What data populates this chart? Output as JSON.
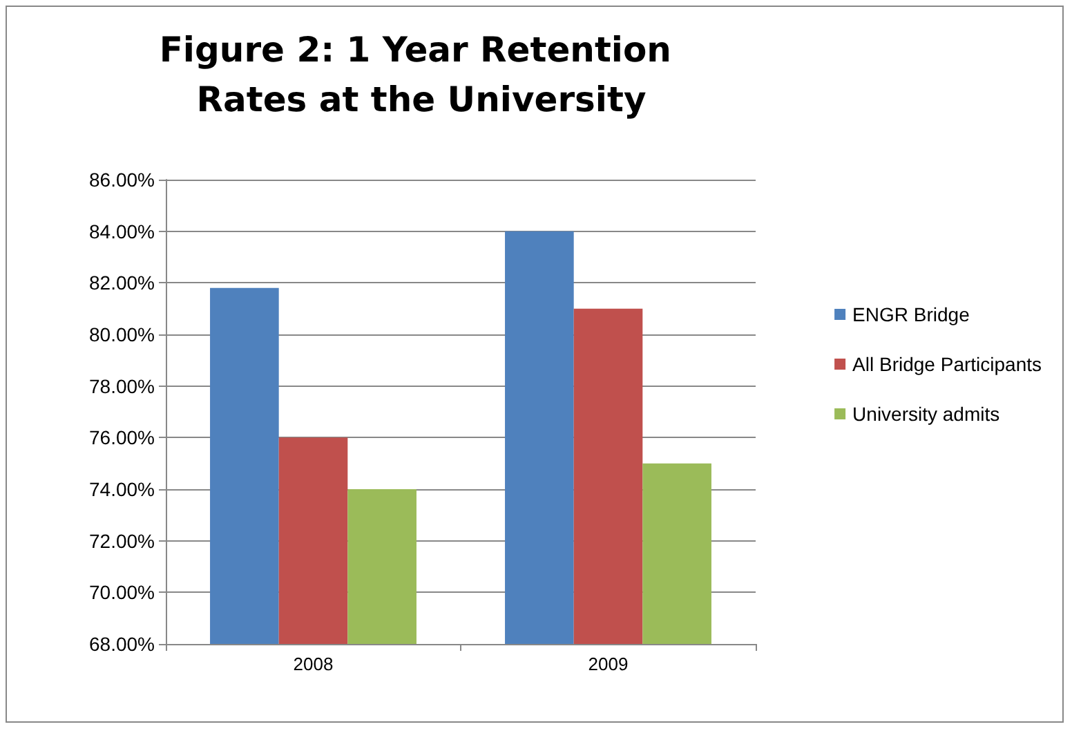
{
  "chart_data": {
    "type": "bar",
    "title": "Figure 2: 1 Year Retention Rates at the University",
    "categories": [
      "2008",
      "2009"
    ],
    "series": [
      {
        "name": "ENGR Bridge",
        "color": "#4f81bd",
        "values": [
          81.8,
          84
        ]
      },
      {
        "name": "All Bridge Participants",
        "color": "#c0504d",
        "values": [
          76,
          81
        ]
      },
      {
        "name": "University admits",
        "color": "#9bbb59",
        "values": [
          74,
          75
        ]
      }
    ],
    "ylim": [
      68,
      86
    ],
    "yticks": [
      {
        "value": 68,
        "label": "68.00%"
      },
      {
        "value": 70,
        "label": "70.00%"
      },
      {
        "value": 72,
        "label": "72.00%"
      },
      {
        "value": 74,
        "label": "74.00%"
      },
      {
        "value": 76,
        "label": "76.00%"
      },
      {
        "value": 78,
        "label": "78.00%"
      },
      {
        "value": 80,
        "label": "80.00%"
      },
      {
        "value": 82,
        "label": "82.00%"
      },
      {
        "value": 84,
        "label": "84.00%"
      },
      {
        "value": 86,
        "label": "86.00%"
      }
    ],
    "grid": true,
    "legend": "right"
  }
}
